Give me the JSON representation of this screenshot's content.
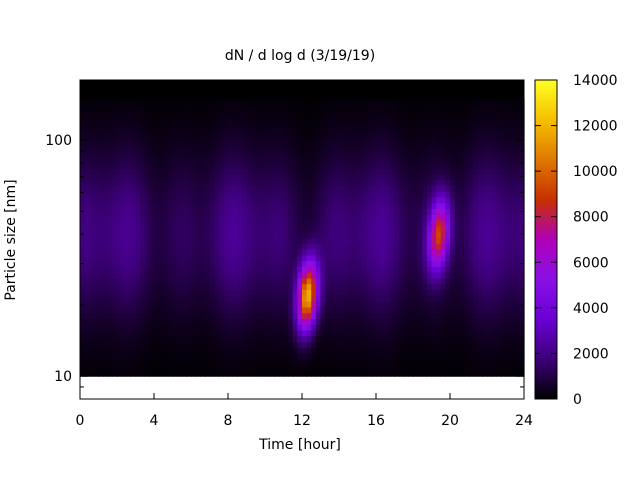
{
  "chart_data": {
    "type": "heatmap",
    "title": "dN / d log d (3/19/19)",
    "xlabel": "Time [hour]",
    "ylabel": "Particle size [nm]",
    "xlim": [
      0,
      24
    ],
    "ylim": [
      8,
      180
    ],
    "y_scale": "log",
    "x_ticks": [
      "0",
      "4",
      "8",
      "12",
      "16",
      "20",
      "24"
    ],
    "x_tick_values": [
      0,
      4,
      8,
      12,
      16,
      20,
      24
    ],
    "y_ticks": [
      "10",
      "100"
    ],
    "y_tick_values": [
      10,
      100
    ],
    "colorbar": {
      "range": [
        0,
        14000
      ],
      "ticks": [
        "0",
        "2000",
        "4000",
        "6000",
        "8000",
        "10000",
        "12000",
        "14000"
      ],
      "tick_values": [
        0,
        2000,
        4000,
        6000,
        8000,
        10000,
        12000,
        14000
      ],
      "palette": [
        "#000000",
        "#3c0078",
        "#6a00d2",
        "#8a10e6",
        "#b000b8",
        "#c83000",
        "#e07800",
        "#f5c000",
        "#ffff20"
      ]
    },
    "features": [
      {
        "name": "background",
        "time_hours": [
          0,
          24
        ],
        "size_nm": [
          10,
          150
        ],
        "value": 2000
      },
      {
        "name": "midday_burst",
        "time_hours": 12.3,
        "size_nm": 22,
        "peak_value": 11500
      },
      {
        "name": "evening_burst",
        "time_hours": 19.4,
        "size_nm": 40,
        "peak_value": 8000
      }
    ],
    "grid": false,
    "legend": "none"
  }
}
